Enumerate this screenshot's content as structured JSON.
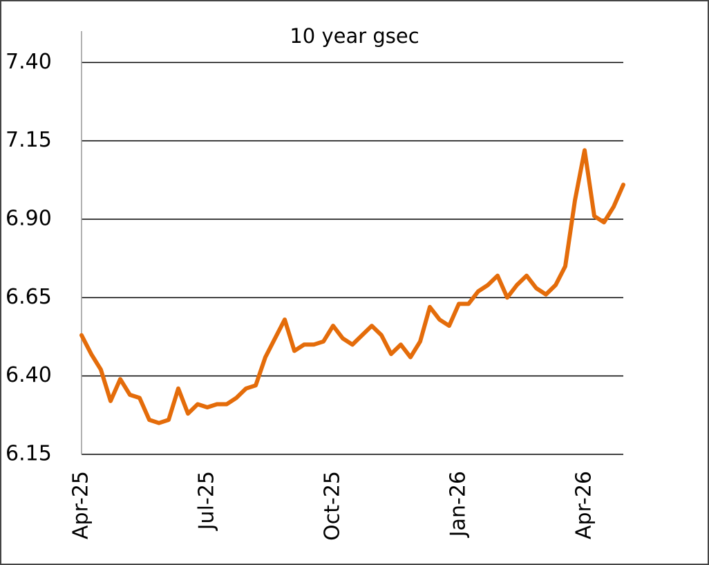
{
  "chart_data": {
    "type": "line",
    "title": "10 year gsec",
    "categories": [
      "Apr-25",
      null,
      null,
      null,
      null,
      null,
      null,
      null,
      null,
      null,
      null,
      null,
      null,
      "Jul-25",
      null,
      null,
      null,
      null,
      null,
      null,
      null,
      null,
      null,
      null,
      null,
      null,
      "Oct-25",
      null,
      null,
      null,
      null,
      null,
      null,
      null,
      null,
      null,
      null,
      null,
      null,
      "Jan-26",
      null,
      null,
      null,
      null,
      null,
      null,
      null,
      null,
      null,
      null,
      null,
      null,
      "Apr-26",
      null,
      null,
      null,
      null
    ],
    "series": [
      {
        "name": "10 year gsec",
        "color": "#e46c0a",
        "values": [
          6.53,
          6.47,
          6.42,
          6.32,
          6.39,
          6.34,
          6.33,
          6.26,
          6.25,
          6.26,
          6.36,
          6.28,
          6.31,
          6.3,
          6.31,
          6.31,
          6.33,
          6.36,
          6.37,
          6.46,
          6.52,
          6.58,
          6.48,
          6.5,
          6.5,
          6.51,
          6.56,
          6.52,
          6.5,
          6.53,
          6.56,
          6.53,
          6.47,
          6.5,
          6.46,
          6.51,
          6.62,
          6.58,
          6.56,
          6.63,
          6.63,
          6.67,
          6.69,
          6.72,
          6.65,
          6.69,
          6.72,
          6.68,
          6.66,
          6.69,
          6.75,
          6.96,
          7.12,
          6.91,
          6.89,
          6.94,
          7.01
        ]
      }
    ],
    "ylim": [
      6.15,
      7.5
    ],
    "yticks": [
      {
        "value": 6.15,
        "label": "6.15"
      },
      {
        "value": 6.4,
        "label": "6.40"
      },
      {
        "value": 6.65,
        "label": "6.65"
      },
      {
        "value": 6.9,
        "label": "6.90"
      },
      {
        "value": 7.15,
        "label": "7.15"
      },
      {
        "value": 7.4,
        "label": "7.40"
      }
    ],
    "grid": true
  }
}
